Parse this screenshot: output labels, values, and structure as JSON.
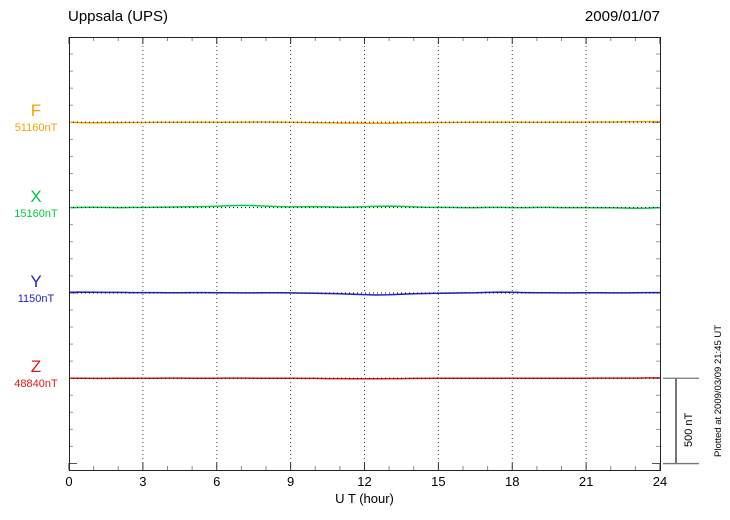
{
  "header": {
    "title": "Uppsala (UPS)",
    "date": "2009/01/07"
  },
  "footer_note": "Plotted at 2009/03/09 21:45 UT",
  "chart_data": {
    "type": "line",
    "title": "Uppsala (UPS)",
    "subtitle": "2009/01/07",
    "xlabel": "U T (hour)",
    "ylabel": "",
    "x_range": [
      0,
      24
    ],
    "x_ticks": [
      0,
      3,
      6,
      9,
      12,
      15,
      18,
      21,
      24
    ],
    "x_minor_step_hours": 1,
    "x_step_hours": 0.5,
    "grid": "dotted-vertical-every-3h",
    "y_tick_interval_nT": 100,
    "y_major_tick_interval_nT": 500,
    "scalebar": {
      "label": "500 nT",
      "nT": 500
    },
    "series": [
      {
        "name": "F",
        "label": "F",
        "base_label": "51160nT",
        "base": 51160,
        "color": "#f0a500",
        "values": [
          51160,
          51158,
          51157,
          51158,
          51158,
          51159,
          51159,
          51160,
          51160,
          51160,
          51161,
          51161,
          51160,
          51160,
          51161,
          51162,
          51162,
          51161,
          51160,
          51159,
          51158,
          51157,
          51156,
          51156,
          51155,
          51154,
          51155,
          51156,
          51157,
          51158,
          51159,
          51159,
          51160,
          51160,
          51161,
          51161,
          51161,
          51160,
          51160,
          51160,
          51161,
          51161,
          51161,
          51162,
          51162,
          51163,
          51163,
          51164,
          51164
        ]
      },
      {
        "name": "X",
        "label": "X",
        "base_label": "15160nT",
        "base": 15160,
        "color": "#00cc44",
        "values": [
          15160,
          15161,
          15162,
          15161,
          15160,
          15161,
          15161,
          15162,
          15163,
          15164,
          15165,
          15166,
          15168,
          15171,
          15173,
          15172,
          15169,
          15166,
          15164,
          15165,
          15166,
          15164,
          15162,
          15163,
          15165,
          15168,
          15169,
          15167,
          15164,
          15162,
          15161,
          15161,
          15160,
          15160,
          15161,
          15161,
          15160,
          15160,
          15161,
          15161,
          15160,
          15160,
          15160,
          15159,
          15159,
          15158,
          15156,
          15157,
          15160
        ]
      },
      {
        "name": "Y",
        "label": "Y",
        "base_label": "1150nT",
        "base": 1150,
        "color": "#2222cc",
        "values": [
          1154,
          1155,
          1154,
          1153,
          1153,
          1152,
          1152,
          1152,
          1151,
          1151,
          1152,
          1152,
          1151,
          1151,
          1150,
          1150,
          1151,
          1151,
          1150,
          1149,
          1148,
          1147,
          1145,
          1142,
          1140,
          1138,
          1139,
          1142,
          1145,
          1147,
          1148,
          1149,
          1150,
          1151,
          1153,
          1155,
          1154,
          1152,
          1151,
          1151,
          1150,
          1150,
          1151,
          1151,
          1150,
          1150,
          1151,
          1152,
          1152
        ]
      },
      {
        "name": "Z",
        "label": "Z",
        "base_label": "48840nT",
        "base": 48840,
        "color": "#e01818",
        "values": [
          48840,
          48840,
          48839,
          48839,
          48840,
          48840,
          48840,
          48840,
          48841,
          48841,
          48840,
          48840,
          48840,
          48841,
          48841,
          48840,
          48840,
          48840,
          48840,
          48839,
          48839,
          48838,
          48838,
          48837,
          48837,
          48837,
          48838,
          48838,
          48839,
          48839,
          48840,
          48840,
          48840,
          48840,
          48840,
          48840,
          48840,
          48840,
          48840,
          48840,
          48840,
          48840,
          48840,
          48841,
          48841,
          48841,
          48841,
          48842,
          48842
        ]
      }
    ]
  }
}
